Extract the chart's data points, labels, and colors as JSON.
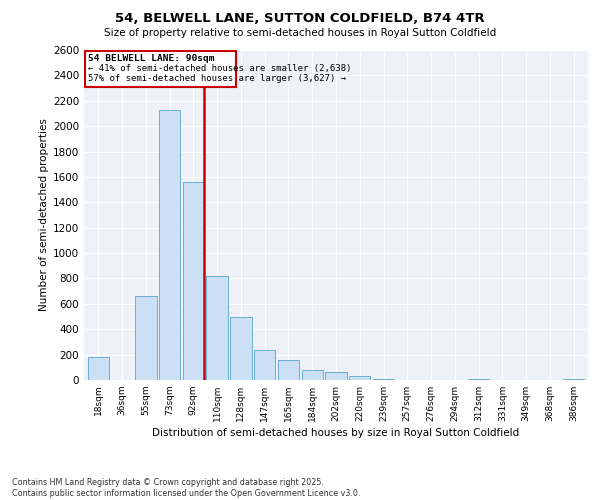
{
  "title": "54, BELWELL LANE, SUTTON COLDFIELD, B74 4TR",
  "subtitle": "Size of property relative to semi-detached houses in Royal Sutton Coldfield",
  "xlabel": "Distribution of semi-detached houses by size in Royal Sutton Coldfield",
  "ylabel": "Number of semi-detached properties",
  "categories": [
    "18sqm",
    "36sqm",
    "55sqm",
    "73sqm",
    "92sqm",
    "110sqm",
    "128sqm",
    "147sqm",
    "165sqm",
    "184sqm",
    "202sqm",
    "220sqm",
    "239sqm",
    "257sqm",
    "276sqm",
    "294sqm",
    "312sqm",
    "331sqm",
    "349sqm",
    "368sqm",
    "386sqm"
  ],
  "values": [
    180,
    0,
    660,
    2130,
    1560,
    820,
    500,
    240,
    160,
    80,
    60,
    30,
    10,
    0,
    0,
    0,
    5,
    0,
    0,
    0,
    5
  ],
  "bar_color": "#cce0f5",
  "bar_edge_color": "#6aaed6",
  "vline_color": "#cc0000",
  "pct_smaller": 41,
  "n_smaller": 2638,
  "pct_larger": 57,
  "n_larger": 3627,
  "annotation_label": "54 BELWELL LANE: 90sqm",
  "ylim": [
    0,
    2600
  ],
  "yticks": [
    0,
    200,
    400,
    600,
    800,
    1000,
    1200,
    1400,
    1600,
    1800,
    2000,
    2200,
    2400,
    2600
  ],
  "bg_color": "#eef2f8",
  "footer": "Contains HM Land Registry data © Crown copyright and database right 2025.\nContains public sector information licensed under the Open Government Licence v3.0.",
  "fig_width": 6.0,
  "fig_height": 5.0,
  "dpi": 100
}
